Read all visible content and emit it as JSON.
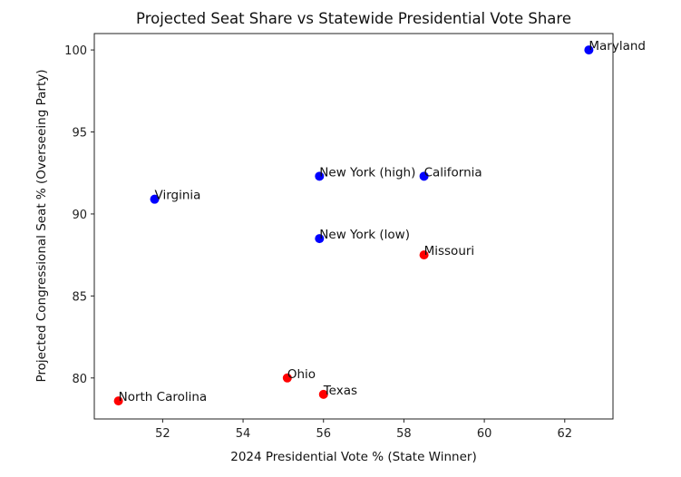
{
  "chart_data": {
    "type": "scatter",
    "title": "Projected Seat Share vs Statewide Presidential Vote Share",
    "xlabel": "2024 Presidential Vote % (State Winner)",
    "ylabel": "Projected Congressional Seat % (Overseeing Party)",
    "xlim": [
      50.3,
      63.2
    ],
    "ylim": [
      77.5,
      101.0
    ],
    "xticks": [
      52,
      54,
      56,
      58,
      60,
      62
    ],
    "yticks": [
      80,
      85,
      90,
      95,
      100
    ],
    "grid": false,
    "colors": {
      "blue": "#0000ff",
      "red": "#ff0000"
    },
    "points": [
      {
        "label": "Maryland",
        "x": 62.6,
        "y": 100.0,
        "color": "blue"
      },
      {
        "label": "New York (high)",
        "x": 55.9,
        "y": 92.3,
        "color": "blue"
      },
      {
        "label": "California",
        "x": 58.5,
        "y": 92.3,
        "color": "blue"
      },
      {
        "label": "Virginia",
        "x": 51.8,
        "y": 90.9,
        "color": "blue"
      },
      {
        "label": "New York (low)",
        "x": 55.9,
        "y": 88.5,
        "color": "blue"
      },
      {
        "label": "Missouri",
        "x": 58.5,
        "y": 87.5,
        "color": "red"
      },
      {
        "label": "Ohio",
        "x": 55.1,
        "y": 80.0,
        "color": "red"
      },
      {
        "label": "Texas",
        "x": 56.0,
        "y": 79.0,
        "color": "red"
      },
      {
        "label": "North Carolina",
        "x": 50.9,
        "y": 78.6,
        "color": "red"
      }
    ]
  }
}
